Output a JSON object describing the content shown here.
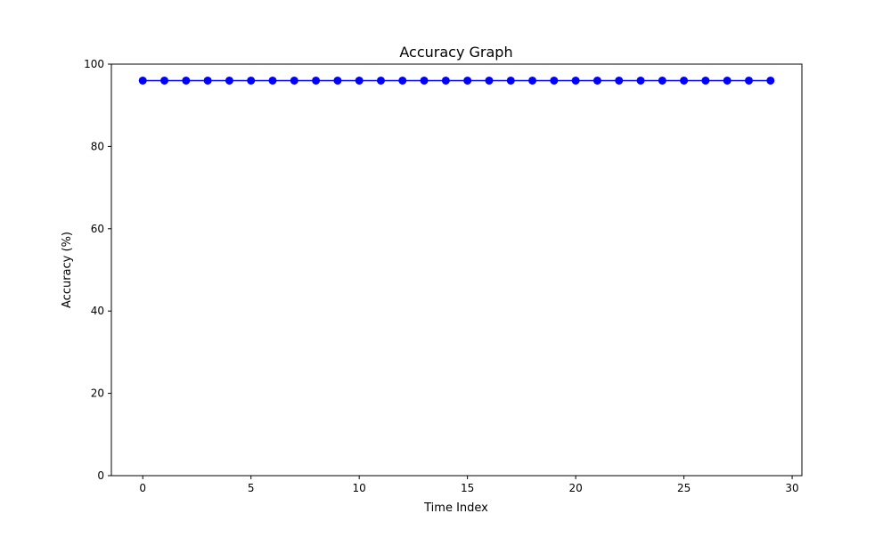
{
  "chart_data": {
    "type": "line",
    "title": "Accuracy Graph",
    "xlabel": "Time Index",
    "ylabel": "Accuracy (%)",
    "xlim": [
      -1.45,
      30.45
    ],
    "ylim": [
      0,
      100
    ],
    "xticks": [
      0,
      5,
      10,
      15,
      20,
      25,
      30
    ],
    "yticks": [
      0,
      20,
      40,
      60,
      80,
      100
    ],
    "grid": false,
    "series": [
      {
        "color": "#0000ff",
        "marker": "circle",
        "x": [
          0,
          1,
          2,
          3,
          4,
          5,
          6,
          7,
          8,
          9,
          10,
          11,
          12,
          13,
          14,
          15,
          16,
          17,
          18,
          19,
          20,
          21,
          22,
          23,
          24,
          25,
          26,
          27,
          28,
          29
        ],
        "y": [
          96,
          96,
          96,
          96,
          96,
          96,
          96,
          96,
          96,
          96,
          96,
          96,
          96,
          96,
          96,
          96,
          96,
          96,
          96,
          96,
          96,
          96,
          96,
          96,
          96,
          96,
          96,
          96,
          96,
          96
        ]
      }
    ]
  }
}
